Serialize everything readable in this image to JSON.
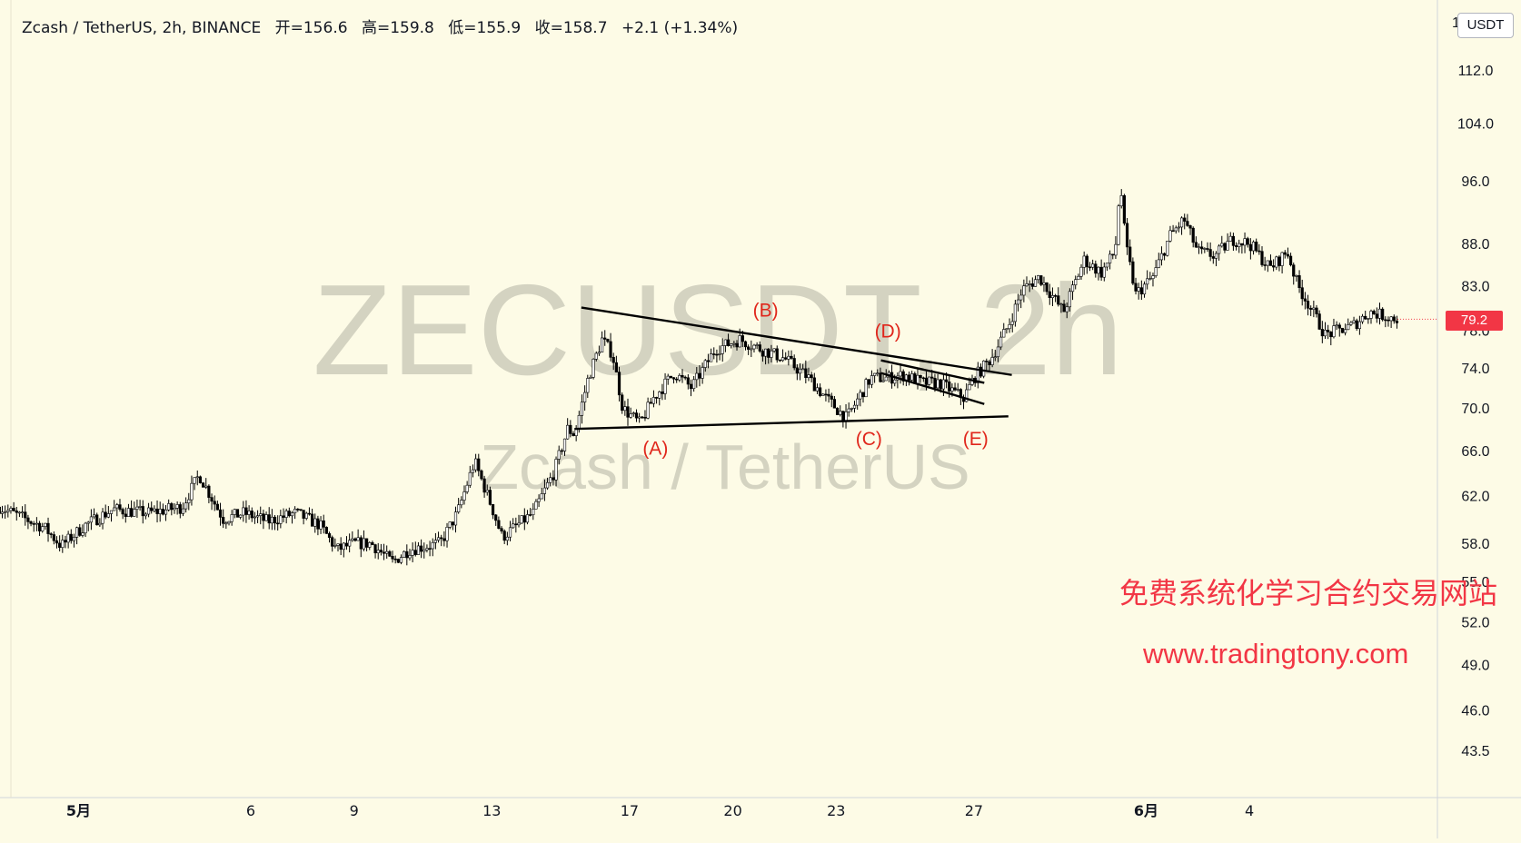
{
  "legend": {
    "symbol": "Zcash / TetherUS, 2h, BINANCE",
    "open": "开=156.6",
    "high": "高=159.8",
    "low": "低=155.9",
    "close": "收=158.7",
    "change": "+2.1 (+1.34%)"
  },
  "currency": "USDT",
  "partial_top_label": "1",
  "watermark": {
    "ticker": "ZECUSDT, 2h",
    "name": "Zcash / TetherUS"
  },
  "promo": {
    "text_cn": "免费系统化学习合约交易网站",
    "url": "www.tradingtony.com"
  },
  "last_price_label": "79.2",
  "colors": {
    "background": "#fdfbe6",
    "candle": "#000000",
    "last_price": "#f23645",
    "wave_label": "#e0261b",
    "promo": "#f23645",
    "watermark": "rgba(120,120,110,0.30)"
  },
  "chart_data": {
    "type": "candlestick",
    "title": "",
    "xlabel": "",
    "ylabel": "",
    "y_scale": "log",
    "ylim": [
      41.5,
      122
    ],
    "y_ticks": [
      {
        "value": 112.0,
        "label": "112.0"
      },
      {
        "value": 104.0,
        "label": "104.0"
      },
      {
        "value": 96.0,
        "label": "96.0"
      },
      {
        "value": 88.0,
        "label": "88.0"
      },
      {
        "value": 83.0,
        "label": "83.0"
      },
      {
        "value": 78.0,
        "label": "78.0"
      },
      {
        "value": 74.0,
        "label": "74.0"
      },
      {
        "value": 70.0,
        "label": "70.0"
      },
      {
        "value": 66.0,
        "label": "66.0"
      },
      {
        "value": 62.0,
        "label": "62.0"
      },
      {
        "value": 58.0,
        "label": "58.0"
      },
      {
        "value": 55.0,
        "label": "55.0"
      },
      {
        "value": 52.0,
        "label": "52.0"
      },
      {
        "value": 49.0,
        "label": "49.0"
      },
      {
        "value": 46.0,
        "label": "46.0"
      },
      {
        "value": 43.5,
        "label": "43.5"
      }
    ],
    "x_ticks": [
      {
        "day": 1,
        "label": "5月",
        "bold": true
      },
      {
        "day": 6,
        "label": "6",
        "bold": false
      },
      {
        "day": 9,
        "label": "9",
        "bold": false
      },
      {
        "day": 13,
        "label": "13",
        "bold": false
      },
      {
        "day": 17,
        "label": "17",
        "bold": false
      },
      {
        "day": 20,
        "label": "20",
        "bold": false
      },
      {
        "day": 23,
        "label": "23",
        "bold": false
      },
      {
        "day": 27,
        "label": "27",
        "bold": false
      },
      {
        "day": 32,
        "label": "6月",
        "bold": true
      },
      {
        "day": 35,
        "label": "4",
        "bold": false
      }
    ],
    "price_path": [
      [
        -1.3,
        61.0
      ],
      [
        0.0,
        59.3
      ],
      [
        0.5,
        57.8
      ],
      [
        1.2,
        59.5
      ],
      [
        2.0,
        60.8
      ],
      [
        3.0,
        60.5
      ],
      [
        4.0,
        61.0
      ],
      [
        4.5,
        63.8
      ],
      [
        5.2,
        60.0
      ],
      [
        5.8,
        60.5
      ],
      [
        6.5,
        59.8
      ],
      [
        7.3,
        60.5
      ],
      [
        8.0,
        59.5
      ],
      [
        8.5,
        57.5
      ],
      [
        9.0,
        58.0
      ],
      [
        9.5,
        58.0
      ],
      [
        10.1,
        56.5
      ],
      [
        10.6,
        57.5
      ],
      [
        11.5,
        58.0
      ],
      [
        12.0,
        60.5
      ],
      [
        12.5,
        65.0
      ],
      [
        13.0,
        61.0
      ],
      [
        13.3,
        58.5
      ],
      [
        14.2,
        60.5
      ],
      [
        14.8,
        64.0
      ],
      [
        15.2,
        68.0
      ],
      [
        15.4,
        67.5
      ],
      [
        15.8,
        73.0
      ],
      [
        16.2,
        77.0
      ],
      [
        16.5,
        75.5
      ],
      [
        16.8,
        70.0
      ],
      [
        17.3,
        68.5
      ],
      [
        17.7,
        71.0
      ],
      [
        18.3,
        73.5
      ],
      [
        18.8,
        72.0
      ],
      [
        19.5,
        76.0
      ],
      [
        20.2,
        77.0
      ],
      [
        20.8,
        76.0
      ],
      [
        21.5,
        75.0
      ],
      [
        22.2,
        73.0
      ],
      [
        22.7,
        71.0
      ],
      [
        23.3,
        69.0
      ],
      [
        24.0,
        73.0
      ],
      [
        24.5,
        73.0
      ],
      [
        25.0,
        73.3
      ],
      [
        25.5,
        72.5
      ],
      [
        26.0,
        72.5
      ],
      [
        26.7,
        71.0
      ],
      [
        27.0,
        73.0
      ],
      [
        27.5,
        75.0
      ],
      [
        28.0,
        78.5
      ],
      [
        28.4,
        82.5
      ],
      [
        28.9,
        84.0
      ],
      [
        29.6,
        80.0
      ],
      [
        30.2,
        86.0
      ],
      [
        30.7,
        84.5
      ],
      [
        31.1,
        87.0
      ],
      [
        31.25,
        96.0
      ],
      [
        31.4,
        88.0
      ],
      [
        31.7,
        82.0
      ],
      [
        32.2,
        84.0
      ],
      [
        32.7,
        89.0
      ],
      [
        33.1,
        91.0
      ],
      [
        33.5,
        87.0
      ],
      [
        34.0,
        86.5
      ],
      [
        34.5,
        88.5
      ],
      [
        35.0,
        88.0
      ],
      [
        35.6,
        85.0
      ],
      [
        36.1,
        87.0
      ],
      [
        36.4,
        83.0
      ],
      [
        36.7,
        81.0
      ],
      [
        37.2,
        77.5
      ],
      [
        38.0,
        78.5
      ],
      [
        38.5,
        80.0
      ],
      [
        39.0,
        79.5
      ],
      [
        39.3,
        79.2
      ]
    ],
    "trendlines": [
      {
        "name": "triangle-upper",
        "points": [
          [
            15.6,
            80.5
          ],
          [
            28.1,
            73.3
          ]
        ]
      },
      {
        "name": "triangle-lower",
        "points": [
          [
            15.4,
            68.0
          ],
          [
            28.0,
            69.2
          ]
        ]
      },
      {
        "name": "flag-upper",
        "points": [
          [
            24.3,
            74.8
          ],
          [
            27.3,
            72.5
          ]
        ]
      },
      {
        "name": "flag-lower",
        "points": [
          [
            24.3,
            73.5
          ],
          [
            27.3,
            70.4
          ]
        ]
      }
    ],
    "annotations": [
      {
        "text": "(A)",
        "day": 17.75,
        "price": 65.6
      },
      {
        "text": "(B)",
        "day": 20.95,
        "price": 79.5
      },
      {
        "text": "(C)",
        "day": 23.95,
        "price": 66.5
      },
      {
        "text": "(D)",
        "day": 24.5,
        "price": 77.2
      },
      {
        "text": "(E)",
        "day": 27.05,
        "price": 66.5
      }
    ]
  }
}
